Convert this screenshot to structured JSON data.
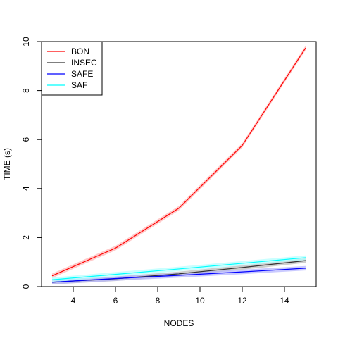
{
  "chart_data": {
    "type": "line",
    "title": "",
    "xlabel": "NODES",
    "ylabel": "TIME (s)",
    "xlim": [
      2.5,
      15.5
    ],
    "ylim": [
      0,
      10
    ],
    "x_ticks": [
      4,
      6,
      8,
      10,
      12,
      14
    ],
    "y_ticks": [
      0,
      2,
      4,
      6,
      8,
      10
    ],
    "grid": false,
    "legend_position": "top-left",
    "series": [
      {
        "name": "BON",
        "color": "#ff0000",
        "band_color": "#ffb3b3",
        "x": [
          3,
          6,
          9,
          12,
          15
        ],
        "values": [
          0.44,
          1.57,
          3.2,
          5.76,
          9.74
        ]
      },
      {
        "name": "INSEC",
        "color": "#333333",
        "band_color": "#b8b8b8",
        "x": [
          3,
          6,
          9,
          12,
          15
        ],
        "values": [
          0.18,
          0.32,
          0.52,
          0.78,
          1.06
        ]
      },
      {
        "name": "SAFE",
        "color": "#0000ff",
        "band_color": "#b3b3ff",
        "x": [
          3,
          6,
          9,
          12,
          15
        ],
        "values": [
          0.18,
          0.33,
          0.46,
          0.6,
          0.75
        ]
      },
      {
        "name": "SAF",
        "color": "#00ffff",
        "band_color": "#b3ffff",
        "x": [
          3,
          6,
          9,
          12,
          15
        ],
        "values": [
          0.28,
          0.5,
          0.72,
          0.95,
          1.18
        ]
      }
    ]
  }
}
